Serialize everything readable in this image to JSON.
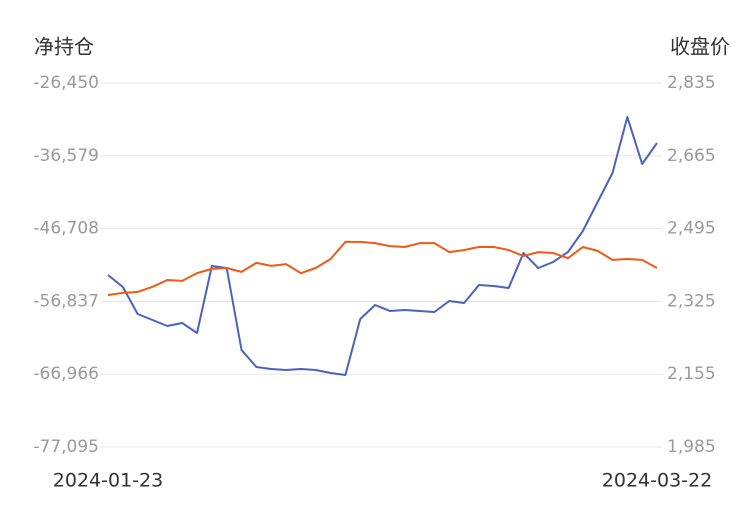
{
  "chart_data": {
    "type": "line",
    "ylabel": "净持仓",
    "y2label": "收盘价",
    "categories": [
      "2024-01-23",
      null,
      null,
      null,
      null,
      null,
      null,
      null,
      null,
      null,
      null,
      null,
      null,
      null,
      null,
      null,
      null,
      null,
      null,
      null,
      null,
      null,
      null,
      null,
      null,
      null,
      null,
      null,
      null,
      null,
      null,
      null,
      null,
      null,
      null,
      null,
      null,
      "2024-03-22"
    ],
    "series": [
      {
        "color": "#4a62c0",
        "axis": "y",
        "values": [
          -53163,
          -54833,
          -58589,
          -59424,
          -60259,
          -59841,
          -61233,
          -51911,
          -52189,
          -63598,
          -65963,
          -66241,
          -66380,
          -66241,
          -66380,
          -66798,
          -67076,
          -59285,
          -57337,
          -58172,
          -58033,
          -58172,
          -58311,
          -56780,
          -57059,
          -54554,
          -54693,
          -54972,
          -50102,
          -52189,
          -51354,
          -49963,
          -47041,
          -43006,
          -38972,
          -31180,
          -37720,
          -34798
        ]
      },
      {
        "color": "#f05a14",
        "axis": "y2",
        "values": [
          2340,
          2345,
          2347,
          2359,
          2375,
          2373,
          2391,
          2401,
          2403,
          2394,
          2415,
          2408,
          2412,
          2391,
          2403,
          2424,
          2464,
          2464,
          2461,
          2454,
          2452,
          2461,
          2461,
          2440,
          2445,
          2452,
          2452,
          2445,
          2431,
          2440,
          2438,
          2426,
          2452,
          2443,
          2422,
          2424,
          2422,
          2403
        ]
      }
    ],
    "ylim": [
      -77095,
      -26450
    ],
    "yticks": [
      {
        "value": -26450,
        "label": "-26,450"
      },
      {
        "value": -36579,
        "label": "-36,579"
      },
      {
        "value": -46708,
        "label": "-46,708"
      },
      {
        "value": -56837,
        "label": "-56,837"
      },
      {
        "value": -66966,
        "label": "-66,966"
      },
      {
        "value": -77095,
        "label": "-77,095"
      }
    ],
    "y2lim": [
      1985,
      2835
    ],
    "y2ticks": [
      {
        "value": 2835,
        "label": "2,835"
      },
      {
        "value": 2665,
        "label": "2,665"
      },
      {
        "value": 2495,
        "label": "2,495"
      },
      {
        "value": 2325,
        "label": "2,325"
      },
      {
        "value": 2155,
        "label": "2,155"
      },
      {
        "value": 1985,
        "label": "1,985"
      }
    ],
    "grid": true
  }
}
